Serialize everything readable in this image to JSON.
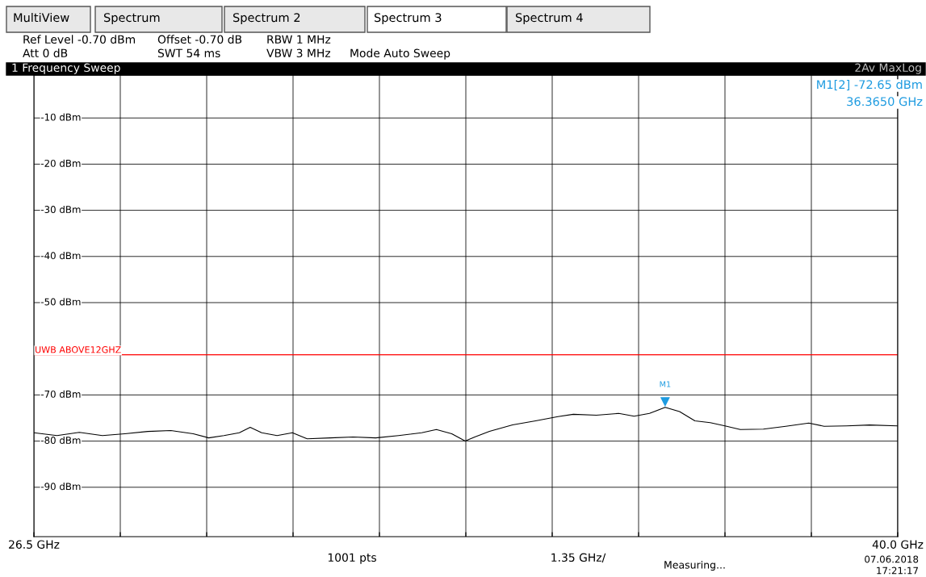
{
  "chart_data": {
    "type": "line",
    "title": "1 Frequency Sweep",
    "x": [
      26.5,
      26.86,
      27.21,
      27.57,
      27.92,
      28.28,
      28.64,
      28.99,
      29.23,
      29.47,
      29.71,
      29.88,
      30.06,
      30.3,
      30.54,
      30.77,
      31.13,
      31.49,
      31.84,
      32.2,
      32.56,
      32.79,
      33.03,
      33.24,
      33.39,
      33.62,
      33.98,
      34.34,
      34.69,
      34.93,
      35.29,
      35.64,
      35.88,
      36.12,
      36.365,
      36.59,
      36.83,
      37.07,
      37.3,
      37.54,
      37.9,
      38.25,
      38.61,
      38.85,
      39.2,
      39.56,
      40.0
    ],
    "series": [
      {
        "color": "#000000",
        "values": [
          -78.2,
          -78.8,
          -78.1,
          -78.8,
          -78.4,
          -77.9,
          -77.7,
          -78.4,
          -79.3,
          -78.8,
          -78.2,
          -77.0,
          -78.2,
          -78.8,
          -78.2,
          -79.5,
          -79.3,
          -79.1,
          -79.3,
          -78.8,
          -78.2,
          -77.5,
          -78.4,
          -80.0,
          -79.1,
          -77.9,
          -76.5,
          -75.6,
          -74.7,
          -74.2,
          -74.4,
          -74.0,
          -74.6,
          -74.0,
          -72.7,
          -73.6,
          -75.6,
          -76.0,
          -76.7,
          -77.5,
          -77.4,
          -76.8,
          -76.1,
          -76.8,
          -76.7,
          -76.5,
          -76.7
        ]
      }
    ],
    "xlim": [
      26.5,
      40.0
    ],
    "xticks": [
      {
        "value": 26.5,
        "label": "26.5 GHz"
      },
      {
        "value": 27.85,
        "label": null
      },
      {
        "value": 29.2,
        "label": null
      },
      {
        "value": 30.55,
        "label": null
      },
      {
        "value": 31.9,
        "label": null
      },
      {
        "value": 33.25,
        "label": null
      },
      {
        "value": 34.6,
        "label": null
      },
      {
        "value": 35.95,
        "label": null
      },
      {
        "value": 37.3,
        "label": null
      },
      {
        "value": 38.65,
        "label": null
      },
      {
        "value": 40.0,
        "label": "40.0 GHz"
      }
    ],
    "ylim": [
      -100.7,
      -0.7
    ],
    "yticks": [
      {
        "value": -10,
        "label": "-10 dBm"
      },
      {
        "value": -20,
        "label": "-20 dBm"
      },
      {
        "value": -30,
        "label": "-30 dBm"
      },
      {
        "value": -40,
        "label": "-40 dBm"
      },
      {
        "value": -50,
        "label": "-50 dBm"
      },
      {
        "value": -70,
        "label": "-70 dBm"
      },
      {
        "value": -80,
        "label": "-80 dBm"
      },
      {
        "value": -90,
        "label": "-90 dBm"
      }
    ],
    "grid": true,
    "legend": false,
    "marker": "none",
    "line_style": "solid",
    "ref_lines": [
      {
        "axis": "y",
        "value": -61.3,
        "label": "UWB ABOVE12GHZ",
        "color": "#ff0000"
      }
    ],
    "annotations": [
      {
        "text": "M1",
        "x": 36.365,
        "y": -72.65
      },
      "MultiView",
      "Spectrum",
      "Spectrum 2",
      "Spectrum 3",
      "Spectrum 4",
      "Ref Level -0.70 dBm",
      "Offset -0.70 dB",
      "RBW 1 MHz",
      "Att 0 dB",
      "SWT 54 ms",
      "VBW 3 MHz",
      "Mode Auto Sweep",
      "2Av MaxLog",
      "M1[2] -72.65 dBm",
      "36.3650 GHz",
      "1001 pts",
      "1.35 GHz/",
      "Measuring...",
      "07.06.2018",
      "17:21:17"
    ]
  }
}
